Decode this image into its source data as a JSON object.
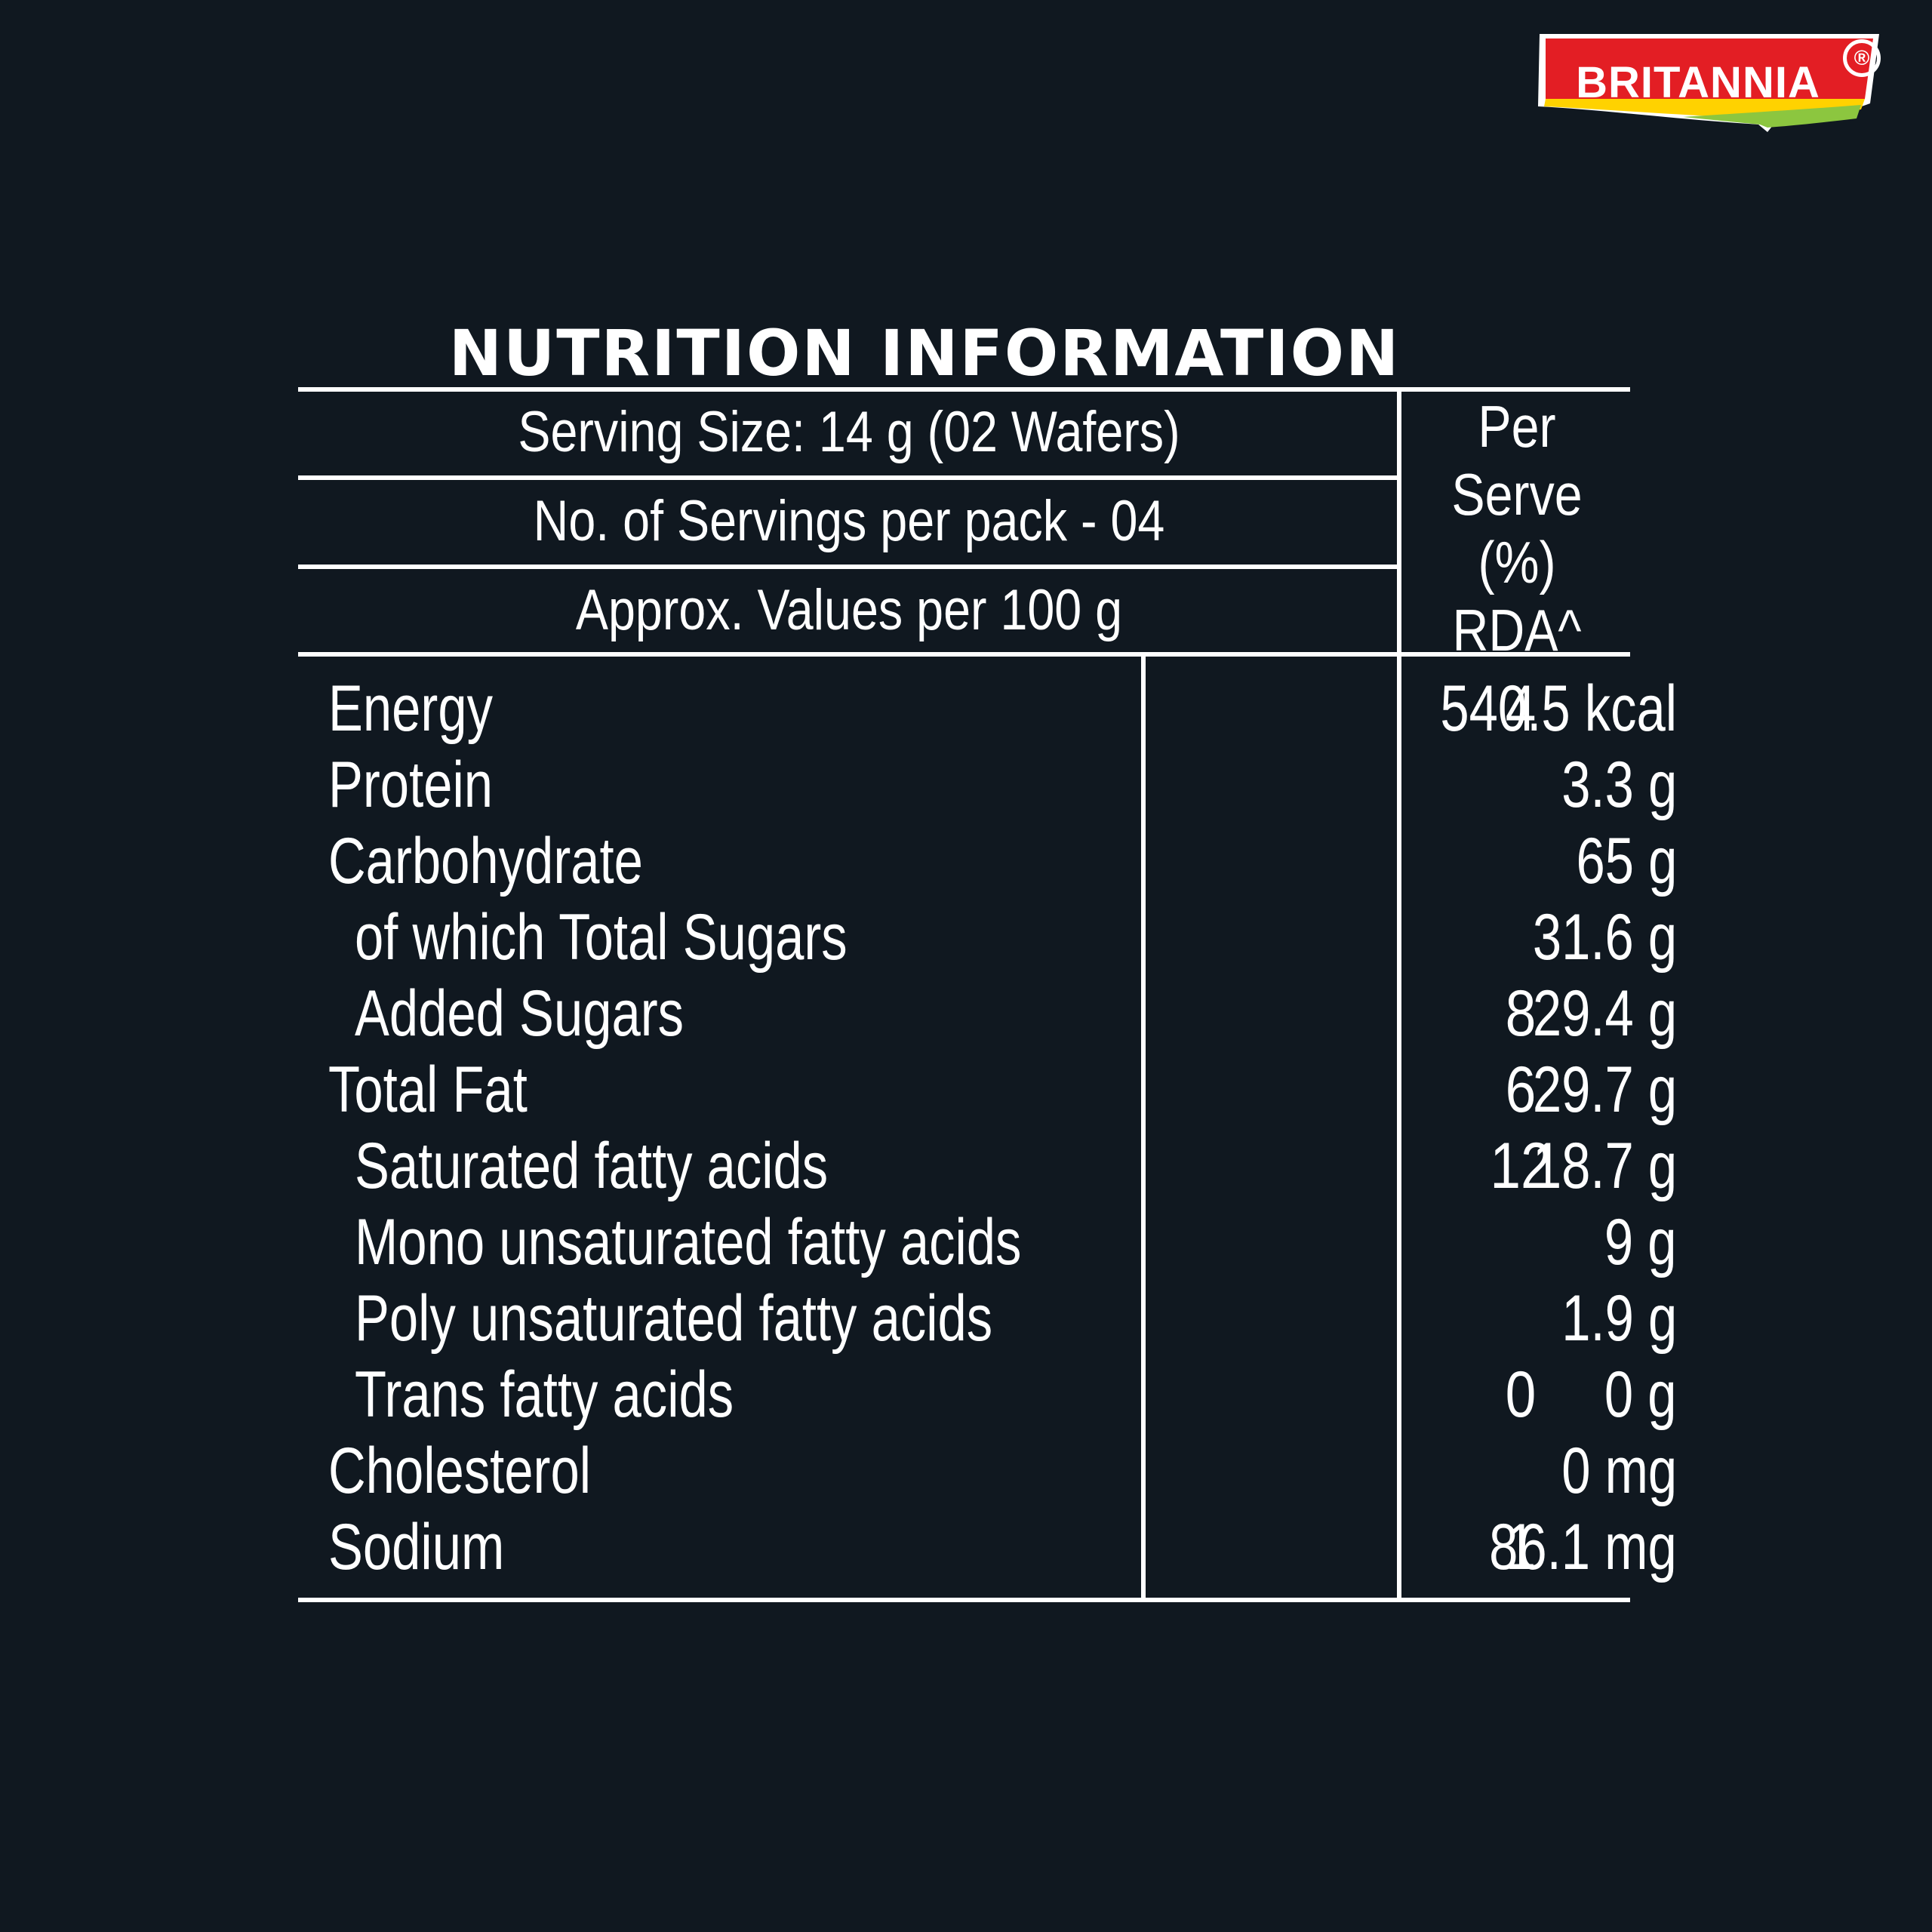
{
  "brand": {
    "logo_text": "BRITANNIA",
    "registered_mark": "®",
    "colors": {
      "red": "#E31E24",
      "yellow": "#FFD200",
      "green": "#8CC63F"
    }
  },
  "title": "NUTRITION INFORMATION",
  "header": {
    "serving_size": "Serving Size: 14 g (02 Wafers)",
    "servings_per_pack": "No. of Servings per pack - 04",
    "values_basis": "Approx. Values per 100 g",
    "rda_line1": "Per",
    "rda_line2": "Serve",
    "rda_line3": "(%) RDA^"
  },
  "rows": [
    {
      "name": "Energy",
      "amount": "540.5 kcal",
      "rda": "4",
      "indent": false
    },
    {
      "name": "Protein",
      "amount": "3.3 g",
      "rda": "",
      "indent": false
    },
    {
      "name": "Carbohydrate",
      "amount": "65 g",
      "rda": "",
      "indent": false
    },
    {
      "name": "of which Total Sugars",
      "amount": "31.6 g",
      "rda": "",
      "indent": true
    },
    {
      "name": "Added Sugars",
      "amount": "29.4 g",
      "rda": "8",
      "indent": true
    },
    {
      "name": "Total Fat",
      "amount": "29.7 g",
      "rda": "6",
      "indent": false
    },
    {
      "name": "Saturated fatty acids",
      "amount": "18.7 g",
      "rda": "12",
      "indent": true
    },
    {
      "name": "Mono unsaturated fatty acids",
      "amount": "9 g",
      "rda": "",
      "indent": true
    },
    {
      "name": "Poly unsaturated fatty acids",
      "amount": "1.9 g",
      "rda": "",
      "indent": true
    },
    {
      "name": "Trans fatty acids",
      "amount": "0 g",
      "rda": "0",
      "indent": true
    },
    {
      "name": "Cholesterol",
      "amount": "0 mg",
      "rda": "",
      "indent": false
    },
    {
      "name": "Sodium",
      "amount": "86.1 mg",
      "rda": "1",
      "indent": false
    }
  ]
}
